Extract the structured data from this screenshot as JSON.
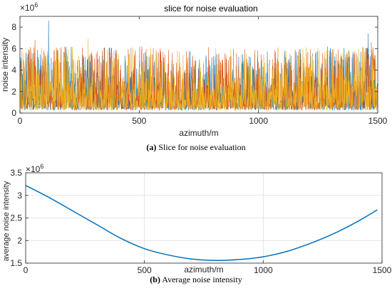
{
  "figure": {
    "caption_a_label": "(a)",
    "caption_a_text": "Slice for noise evaluation",
    "caption_b_label": "(b)",
    "caption_b_text": "Average noise intensity"
  },
  "chart_data": [
    {
      "type": "line",
      "title": "slice for noise evaluation",
      "xlabel": "azimuth/m",
      "ylabel": "noise intensity",
      "y_exponent_label": "×10",
      "y_exponent_power": "6",
      "xlim": [
        0,
        1500
      ],
      "ylim": [
        0,
        9
      ],
      "xticks": [
        0,
        500,
        1000,
        1500
      ],
      "xtick_labels": [
        "0",
        "500",
        "1000",
        "1500"
      ],
      "yticks": [
        0,
        2,
        4,
        6,
        8
      ],
      "ytick_labels": [
        "0",
        "2",
        "4",
        "6",
        "8"
      ],
      "grid": false,
      "series_colors": [
        "#0072BD",
        "#D95319",
        "#EDB120"
      ],
      "points_per_series": 1500,
      "series_profile": {
        "x": [
          0,
          250,
          500,
          750,
          1000,
          1250,
          1500
        ],
        "mean": [
          2.4,
          2.2,
          1.9,
          1.7,
          1.8,
          2.1,
          2.5
        ],
        "peaks": [
          [
            120,
            8.6
          ],
          [
            60,
            6.8
          ],
          [
            280,
            6.9
          ],
          [
            1460,
            7.4
          ],
          [
            1470,
            6.6
          ],
          [
            210,
            6.1
          ]
        ]
      }
    },
    {
      "type": "line",
      "title": "",
      "xlabel": "azimuth/m",
      "ylabel": "average noise intensity",
      "y_exponent_label": "×10",
      "y_exponent_power": "6",
      "xlim": [
        0,
        1500
      ],
      "ylim": [
        1.5,
        3.5
      ],
      "xticks": [
        0,
        500,
        1000,
        1500
      ],
      "xtick_labels": [
        "0",
        "500",
        "1000",
        "1500"
      ],
      "yticks": [
        1.5,
        2,
        2.5,
        3,
        3.5
      ],
      "ytick_labels": [
        "1.5",
        "2",
        "2.5",
        "3",
        "3.5"
      ],
      "grid": true,
      "series_colors": [
        "#0072BD"
      ],
      "x": [
        0,
        100,
        200,
        300,
        400,
        500,
        600,
        700,
        800,
        900,
        1000,
        1100,
        1200,
        1300,
        1400,
        1480
      ],
      "y": [
        3.22,
        2.95,
        2.65,
        2.35,
        2.05,
        1.82,
        1.68,
        1.59,
        1.56,
        1.58,
        1.64,
        1.76,
        1.94,
        2.16,
        2.43,
        2.68
      ]
    }
  ]
}
